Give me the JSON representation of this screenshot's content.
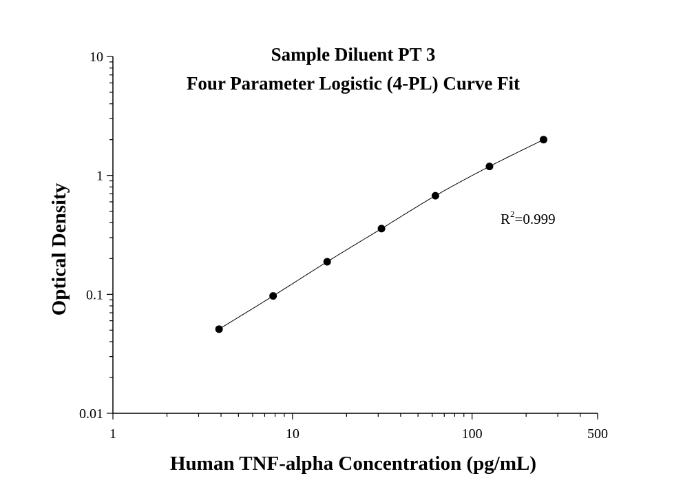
{
  "chart_data": {
    "type": "scatter",
    "title": "Sample Diluent PT 3",
    "subtitle": "Four Parameter Logistic (4-PL) Curve Fit",
    "xlabel": "Human TNF-alpha Concentration (pg/mL)",
    "ylabel": "Optical Density",
    "x_scale": "log",
    "y_scale": "log",
    "xlim": [
      1,
      500
    ],
    "ylim": [
      0.01,
      10
    ],
    "x_tick_labels": [
      "1",
      "10",
      "100",
      "500"
    ],
    "y_tick_labels": [
      "10",
      "1",
      "0.1",
      "0.01"
    ],
    "grid": false,
    "legend": "none",
    "series": [
      {
        "x": [
          3.9,
          7.8,
          15.6,
          31.3,
          62.5,
          125,
          250
        ],
        "y": [
          0.051,
          0.097,
          0.188,
          0.357,
          0.675,
          1.19,
          2.0
        ]
      }
    ],
    "fit_curve": true,
    "annotation": {
      "prefix": "R",
      "superscript": "2",
      "suffix": "=0.999"
    }
  }
}
